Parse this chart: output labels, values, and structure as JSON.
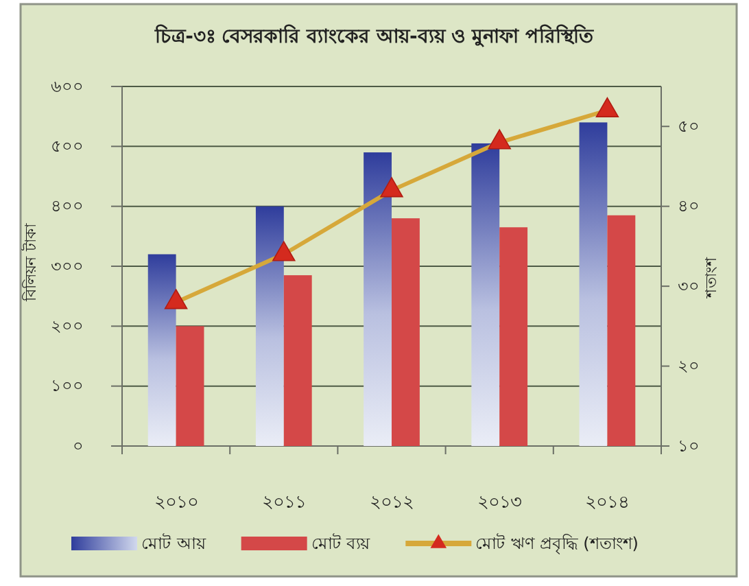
{
  "chart_data": {
    "type": "bar",
    "title": "চিত্র-৩ঃ বেসরকারি ব্যাংকের আয়-ব্যয় ও মুনাফা পরিস্থিতি",
    "ylabel": "বিলিয়ন টাকা",
    "y2label": "শতাংশ",
    "categories": [
      "২০১০",
      "২০১১",
      "২০১২",
      "২০১৩",
      "২০১৪"
    ],
    "series": [
      {
        "name": "মোট আয়",
        "color": "#2f3d9c",
        "values": [
          320,
          400,
          490,
          505,
          540
        ]
      },
      {
        "name": "মোট ব্যয়",
        "color": "#d44848",
        "values": [
          200,
          285,
          380,
          365,
          385
        ]
      },
      {
        "name": "মোট ঋণ প্রবৃদ্ধি (শতাংশ)",
        "type": "line",
        "axis": "y2",
        "color": "#d6a83a",
        "values": [
          28,
          34,
          42,
          48,
          52
        ]
      }
    ],
    "ylim": [
      0,
      600
    ],
    "yticks": [
      {
        "value": 0,
        "label": "০"
      },
      {
        "value": 100,
        "label": "১০০"
      },
      {
        "value": 200,
        "label": "২০০"
      },
      {
        "value": 300,
        "label": "৩০০"
      },
      {
        "value": 400,
        "label": "৪০০"
      },
      {
        "value": 500,
        "label": "৫০০"
      },
      {
        "value": 600,
        "label": "৬০০"
      }
    ],
    "y2lim": [
      10,
      55
    ],
    "y2ticks": [
      {
        "value": 10,
        "label": "১০"
      },
      {
        "value": 20,
        "label": "২০"
      },
      {
        "value": 30,
        "label": "৩০"
      },
      {
        "value": 40,
        "label": "৪০"
      },
      {
        "value": 50,
        "label": "৫০"
      }
    ],
    "grid": "y",
    "legend": "bottom",
    "marker": "triangle"
  }
}
